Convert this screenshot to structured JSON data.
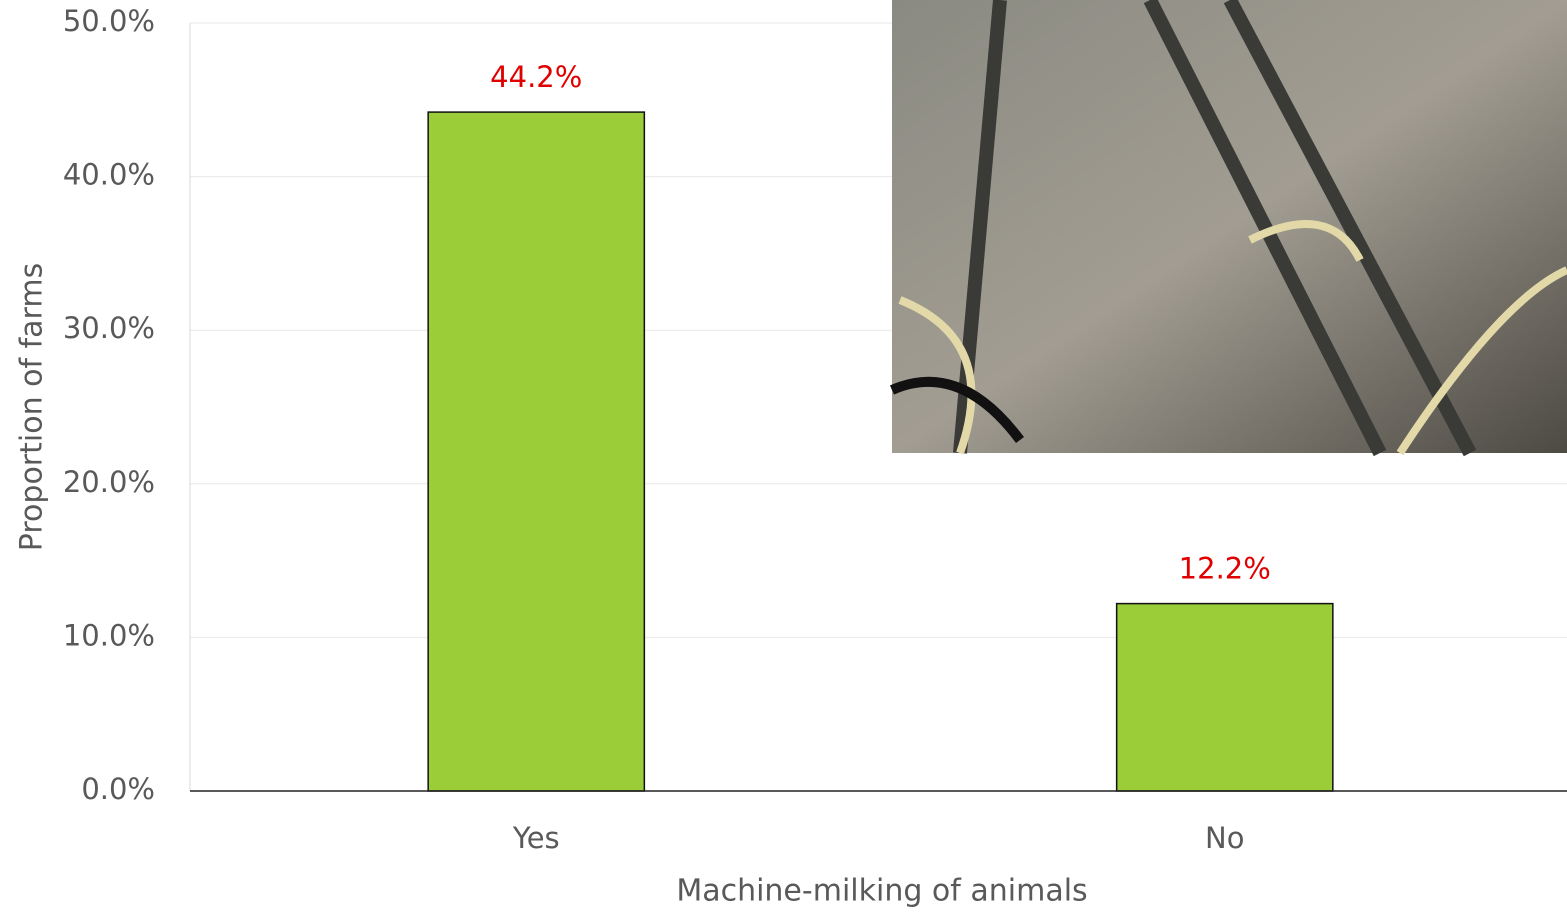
{
  "chart_data": {
    "type": "bar",
    "categories": [
      "Yes",
      "No"
    ],
    "values": [
      44.2,
      12.2
    ],
    "value_labels": [
      "44.2%",
      "12.2%"
    ],
    "color": "#9acd38",
    "xlabel": "Machine-milking of animals",
    "ylabel": "Proportion of farms",
    "ylim": [
      0,
      50
    ],
    "yticks": [
      {
        "value": 0,
        "label": "0.0%"
      },
      {
        "value": 10,
        "label": "10.0%"
      },
      {
        "value": 20,
        "label": "20.0%"
      },
      {
        "value": 30,
        "label": "30.0%"
      },
      {
        "value": 40,
        "label": "40.0%"
      },
      {
        "value": 50,
        "label": "50.0%"
      }
    ],
    "grid": true
  }
}
